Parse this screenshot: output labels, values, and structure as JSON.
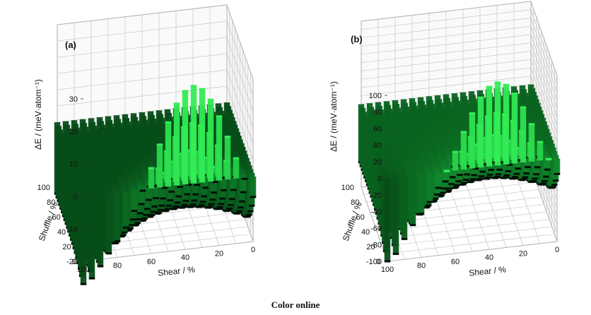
{
  "caption": "Color online",
  "colors": {
    "high": "#33ee55",
    "mid": "#18a838",
    "low": "#064d18",
    "grid": "#bdbdbd",
    "box": "#7a7a7a"
  },
  "chart_data": [
    {
      "type": "surface3d",
      "panel_label": "(a)",
      "xlabel": "Shear / %",
      "ylabel": "Shuffle / %",
      "zlabel": "ΔE / (meV·atom⁻¹)",
      "x_ticks": [
        "100",
        "80",
        "60",
        "40",
        "20",
        "0"
      ],
      "y_ticks": [
        "0",
        "20",
        "40",
        "60",
        "80",
        "100"
      ],
      "z_ticks": [
        "-20",
        "-10",
        "0",
        "10",
        "20",
        "30"
      ],
      "xlim": [
        0,
        100
      ],
      "ylim": [
        0,
        100
      ],
      "zlim": [
        -20,
        30
      ],
      "grid": true,
      "description_values": {
        "peak_shear": 35,
        "peak_shuffle": 0,
        "peak_value": 30,
        "min_shear": 100,
        "min_shuffle": 0,
        "min_value": -27,
        "far_value": -22
      }
    },
    {
      "type": "surface3d",
      "panel_label": "(b)",
      "xlabel": "Shear / %",
      "ylabel": "Shuffle / %",
      "zlabel": "ΔE / (meV·atom⁻¹)",
      "x_ticks": [
        "100",
        "80",
        "60",
        "40",
        "20",
        "0"
      ],
      "y_ticks": [
        "0",
        "20",
        "40",
        "60",
        "80",
        "100"
      ],
      "z_ticks": [
        "-100",
        "-80",
        "-60",
        "-40",
        "-20",
        "0",
        "20",
        "40",
        "60",
        "80",
        "100"
      ],
      "xlim": [
        0,
        100
      ],
      "ylim": [
        0,
        100
      ],
      "zlim": [
        -100,
        100
      ],
      "grid": true,
      "description_values": {
        "peak_shear": 35,
        "peak_shuffle": 0,
        "peak_value": 100,
        "min_shear": 100,
        "min_shuffle": 0,
        "min_value": -100,
        "far_value": -70
      }
    }
  ]
}
